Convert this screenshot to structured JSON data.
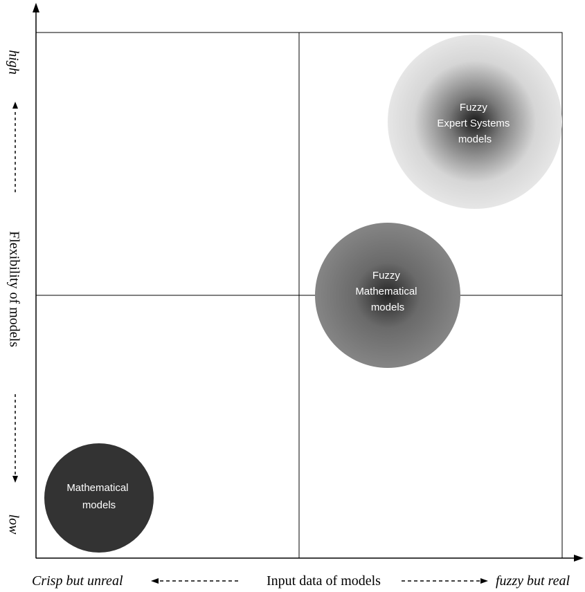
{
  "y_axis": {
    "high_label": "high",
    "title": "Flexibility of models",
    "low_label": "low"
  },
  "x_axis": {
    "left_label": "Crisp but unreal",
    "title": "Input data of models",
    "right_label": "fuzzy but real"
  },
  "bubbles": [
    {
      "id": "math",
      "lines": [
        "Mathematical",
        "models"
      ],
      "style": "dark"
    },
    {
      "id": "fuzzy-math",
      "lines": [
        "Fuzzy",
        "Mathematical",
        "models"
      ],
      "style": "medium"
    },
    {
      "id": "fuzzy-expert",
      "lines": [
        "Fuzzy",
        "Expert Systems",
        "models"
      ],
      "style": "light"
    }
  ]
}
